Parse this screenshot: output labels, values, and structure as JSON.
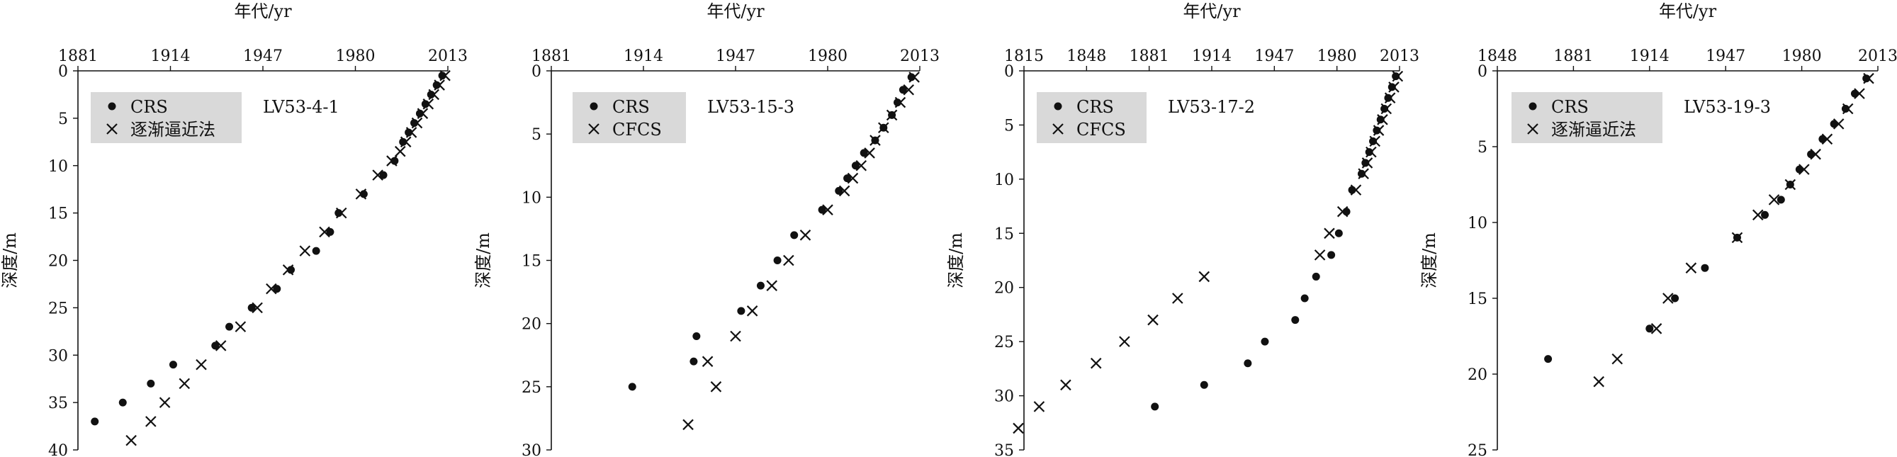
{
  "colors": {
    "ink": "#111111",
    "legend_bg": "#d9d9d9",
    "background": "#ffffff"
  },
  "chart_data": [
    {
      "type": "scatter",
      "sample": "LV53-4-1",
      "xlabel": "年代/yr",
      "ylabel": "深度/m",
      "xlim": [
        1881,
        2013
      ],
      "xticks": [
        1881,
        1914,
        1947,
        1980,
        2013
      ],
      "ylim": [
        0,
        40
      ],
      "yticks": [
        0,
        5,
        10,
        15,
        20,
        25,
        30,
        35,
        40
      ],
      "series": [
        {
          "name": "CRS",
          "marker": "dot",
          "points": [
            [
              2011,
              0.5
            ],
            [
              2009,
              1.5
            ],
            [
              2007,
              2.5
            ],
            [
              2005,
              3.5
            ],
            [
              2003,
              4.5
            ],
            [
              2001,
              5.5
            ],
            [
              1999,
              6.5
            ],
            [
              1997,
              7.5
            ],
            [
              1994,
              9.5
            ],
            [
              1990,
              11
            ],
            [
              1983,
              13
            ],
            [
              1974,
              15
            ],
            [
              1971,
              17
            ],
            [
              1966,
              19
            ],
            [
              1957,
              21
            ],
            [
              1952,
              23
            ],
            [
              1943,
              25
            ],
            [
              1935,
              27
            ],
            [
              1930,
              29
            ],
            [
              1915,
              31
            ],
            [
              1907,
              33
            ],
            [
              1897,
              35
            ],
            [
              1887,
              37
            ]
          ]
        },
        {
          "name": "逐渐逼近法",
          "marker": "cross",
          "points": [
            [
              2012,
              0.5
            ],
            [
              2010,
              1.5
            ],
            [
              2008,
              2.5
            ],
            [
              2006,
              3.5
            ],
            [
              2004,
              4.5
            ],
            [
              2002,
              5.5
            ],
            [
              2000,
              6.5
            ],
            [
              1998,
              7.5
            ],
            [
              1996,
              8.5
            ],
            [
              1993,
              9.5
            ],
            [
              1988,
              11
            ],
            [
              1982,
              13
            ],
            [
              1975,
              15
            ],
            [
              1969,
              17
            ],
            [
              1962,
              19
            ],
            [
              1956,
              21
            ],
            [
              1950,
              23
            ],
            [
              1945,
              25
            ],
            [
              1939,
              27
            ],
            [
              1932,
              29
            ],
            [
              1925,
              31
            ],
            [
              1919,
              33
            ],
            [
              1912,
              35
            ],
            [
              1907,
              37
            ],
            [
              1900,
              39
            ]
          ]
        }
      ]
    },
    {
      "type": "scatter",
      "sample": "LV53-15-3",
      "xlabel": "年代/yr",
      "ylabel": "深度/m",
      "xlim": [
        1881,
        2013
      ],
      "xticks": [
        1881,
        1914,
        1947,
        1980,
        2013
      ],
      "ylim": [
        0,
        30
      ],
      "yticks": [
        0,
        5,
        10,
        15,
        20,
        25,
        30
      ],
      "series": [
        {
          "name": "CRS",
          "marker": "dot",
          "points": [
            [
              2010,
              0.5
            ],
            [
              2007,
              1.5
            ],
            [
              2005,
              2.5
            ],
            [
              2003,
              3.5
            ],
            [
              2000,
              4.5
            ],
            [
              1997,
              5.5
            ],
            [
              1993,
              6.5
            ],
            [
              1990,
              7.5
            ],
            [
              1987,
              8.5
            ],
            [
              1984,
              9.5
            ],
            [
              1978,
              11
            ],
            [
              1968,
              13
            ],
            [
              1962,
              15
            ],
            [
              1956,
              17
            ],
            [
              1949,
              19
            ],
            [
              1933,
              21
            ],
            [
              1932,
              23
            ],
            [
              1910,
              25
            ]
          ]
        },
        {
          "name": "CFCS",
          "marker": "cross",
          "points": [
            [
              2011,
              0.5
            ],
            [
              2009,
              1.5
            ],
            [
              2006,
              2.5
            ],
            [
              2003,
              3.5
            ],
            [
              2000,
              4.5
            ],
            [
              1997,
              5.5
            ],
            [
              1995,
              6.5
            ],
            [
              1992,
              7.5
            ],
            [
              1989,
              8.5
            ],
            [
              1986,
              9.5
            ],
            [
              1980,
              11
            ],
            [
              1972,
              13
            ],
            [
              1966,
              15
            ],
            [
              1960,
              17
            ],
            [
              1953,
              19
            ],
            [
              1947,
              21
            ],
            [
              1937,
              23
            ],
            [
              1940,
              25
            ],
            [
              1930,
              28
            ]
          ]
        }
      ]
    },
    {
      "type": "scatter",
      "sample": "LV53-17-2",
      "xlabel": "年代/yr",
      "ylabel": "深度/m",
      "xlim": [
        1815,
        2013
      ],
      "xticks": [
        1815,
        1848,
        1881,
        1914,
        1947,
        1980,
        2013
      ],
      "ylim": [
        0,
        35
      ],
      "yticks": [
        0,
        5,
        10,
        15,
        20,
        25,
        30,
        35
      ],
      "series": [
        {
          "name": "CRS",
          "marker": "dot",
          "points": [
            [
              2011,
              0.5
            ],
            [
              2009,
              1.5
            ],
            [
              2007,
              2.5
            ],
            [
              2005,
              3.5
            ],
            [
              2003,
              4.5
            ],
            [
              2001,
              5.5
            ],
            [
              1999,
              6.5
            ],
            [
              1997,
              7.5
            ],
            [
              1995,
              8.5
            ],
            [
              1993,
              9.5
            ],
            [
              1988,
              11
            ],
            [
              1985,
              13
            ],
            [
              1981,
              15
            ],
            [
              1977,
              17
            ],
            [
              1969,
              19
            ],
            [
              1963,
              21
            ],
            [
              1958,
              23
            ],
            [
              1942,
              25
            ],
            [
              1933,
              27
            ],
            [
              1910,
              29
            ],
            [
              1884,
              31
            ]
          ]
        },
        {
          "name": "CFCS",
          "marker": "cross",
          "points": [
            [
              2012,
              0.5
            ],
            [
              2010,
              1.5
            ],
            [
              2008,
              2.5
            ],
            [
              2006,
              3.5
            ],
            [
              2004,
              4.5
            ],
            [
              2002,
              5.5
            ],
            [
              2000,
              6.5
            ],
            [
              1998,
              7.5
            ],
            [
              1996,
              8.5
            ],
            [
              1994,
              9.5
            ],
            [
              1990,
              11
            ],
            [
              1983,
              13
            ],
            [
              1976,
              15
            ],
            [
              1971,
              17
            ],
            [
              1910,
              19
            ],
            [
              1896,
              21
            ],
            [
              1883,
              23
            ],
            [
              1868,
              25
            ],
            [
              1853,
              27
            ],
            [
              1837,
              29
            ],
            [
              1823,
              31
            ],
            [
              1810,
              33
            ]
          ]
        }
      ]
    },
    {
      "type": "scatter",
      "sample": "LV53-19-3",
      "xlabel": "年代/yr",
      "ylabel": "深度/m",
      "xlim": [
        1848,
        2013
      ],
      "xticks": [
        1848,
        1881,
        1914,
        1947,
        1980,
        2013
      ],
      "ylim": [
        0,
        25
      ],
      "yticks": [
        0,
        5,
        10,
        15,
        20,
        25
      ],
      "series": [
        {
          "name": "CRS",
          "marker": "dot",
          "points": [
            [
              2008,
              0.5
            ],
            [
              2003,
              1.5
            ],
            [
              1999,
              2.5
            ],
            [
              1994,
              3.5
            ],
            [
              1989,
              4.5
            ],
            [
              1984,
              5.5
            ],
            [
              1979,
              6.5
            ],
            [
              1975,
              7.5
            ],
            [
              1971,
              8.5
            ],
            [
              1964,
              9.5
            ],
            [
              1952,
              11
            ],
            [
              1938,
              13
            ],
            [
              1925,
              15
            ],
            [
              1914,
              17
            ],
            [
              1870,
              19
            ]
          ]
        },
        {
          "name": "逐渐逼近法",
          "marker": "cross",
          "points": [
            [
              2009,
              0.5
            ],
            [
              2005,
              1.5
            ],
            [
              2000,
              2.5
            ],
            [
              1996,
              3.5
            ],
            [
              1991,
              4.5
            ],
            [
              1986,
              5.5
            ],
            [
              1981,
              6.5
            ],
            [
              1975,
              7.5
            ],
            [
              1968,
              8.5
            ],
            [
              1961,
              9.5
            ],
            [
              1952,
              11
            ],
            [
              1932,
              13
            ],
            [
              1922,
              15
            ],
            [
              1917,
              17
            ],
            [
              1900,
              19
            ],
            [
              1892,
              20.5
            ]
          ]
        }
      ]
    }
  ]
}
